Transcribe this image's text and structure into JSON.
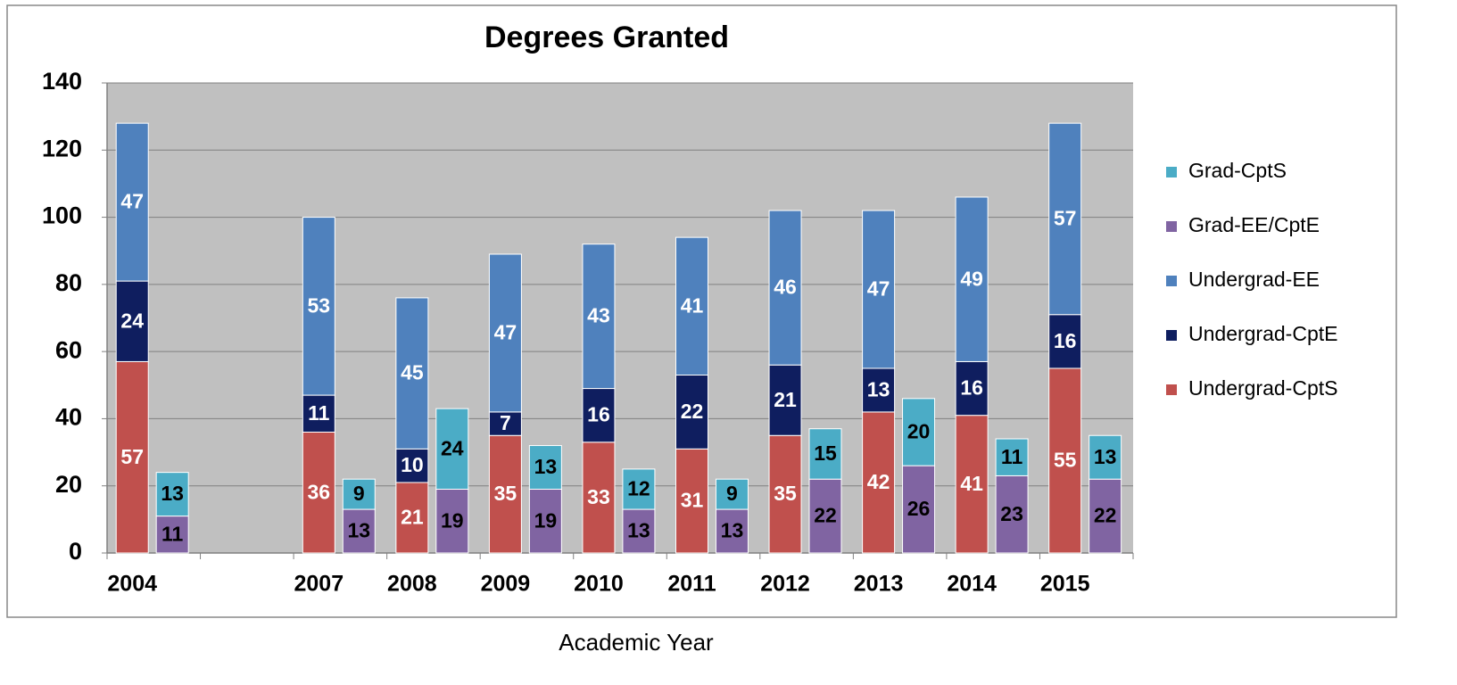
{
  "chart_data": {
    "type": "bar",
    "stacked": true,
    "title": "Degrees Granted",
    "xlabel": "Academic Year",
    "categories": [
      "2004",
      null,
      "2007",
      "2008",
      "2009",
      "2010",
      "2011",
      "2012",
      "2013",
      "2014",
      "2015"
    ],
    "series": [
      {
        "name": "Undergrad-CptS",
        "color": "#c0504d",
        "label_color": "#ffffff",
        "stack": 0,
        "values": [
          57,
          null,
          36,
          21,
          35,
          33,
          31,
          35,
          42,
          41,
          55
        ]
      },
      {
        "name": "Undergrad-CptE",
        "color": "#0f1e5f",
        "label_color": "#ffffff",
        "stack": 0,
        "values": [
          24,
          null,
          11,
          10,
          7,
          16,
          22,
          21,
          13,
          16,
          16
        ]
      },
      {
        "name": "Undergrad-EE",
        "color": "#4f81bd",
        "label_color": "#ffffff",
        "stack": 0,
        "values": [
          47,
          null,
          53,
          45,
          47,
          43,
          41,
          46,
          47,
          49,
          57
        ]
      },
      {
        "name": "Grad-EE/CptE",
        "color": "#8064a2",
        "label_color": "#000000",
        "stack": 1,
        "values": [
          11,
          null,
          13,
          19,
          19,
          13,
          13,
          22,
          26,
          23,
          22
        ]
      },
      {
        "name": "Grad-CptS",
        "color": "#4bacc6",
        "label_color": "#000000",
        "stack": 1,
        "values": [
          13,
          null,
          9,
          24,
          13,
          12,
          9,
          15,
          20,
          11,
          13
        ]
      }
    ],
    "ylim": [
      0,
      140
    ],
    "yticks": [
      0,
      20,
      40,
      60,
      80,
      100,
      120,
      140
    ],
    "grid": true,
    "legend": "right"
  }
}
